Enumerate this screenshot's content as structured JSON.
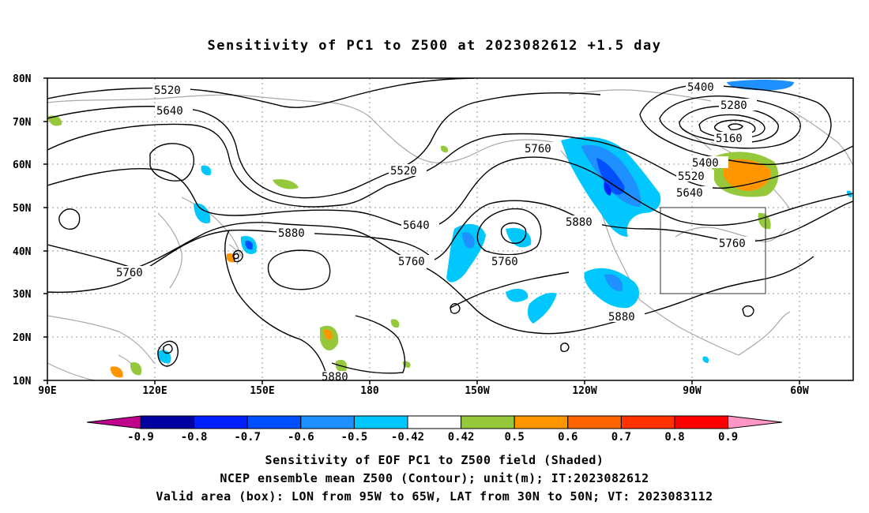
{
  "title": "Sensitivity of PC1 to Z500 at 2023082612 +1.5 day",
  "lat_labels": [
    "80N",
    "70N",
    "60N",
    "50N",
    "40N",
    "30N",
    "20N",
    "10N"
  ],
  "lon_labels": [
    "90E",
    "120E",
    "150E",
    "180",
    "150W",
    "120W",
    "90W",
    "60W"
  ],
  "contour_labels": {
    "c5520a": "5520",
    "c5640a": "5640",
    "c5520b": "5520",
    "c5760a": "5760",
    "c5640b": "5640",
    "c5760b": "5760",
    "c5760c": "5760",
    "c5880a": "5880",
    "c5880b": "5880",
    "c5880c": "5880",
    "c5880d": "5880",
    "c5760d": "5760",
    "c5400a": "5400",
    "c5280": "5280",
    "c5160": "5160",
    "c5400b": "5400",
    "c5520c": "5520",
    "c5640c": "5640",
    "c5760e": "5760"
  },
  "colorbar": {
    "ticks": [
      "-0.9",
      "-0.8",
      "-0.7",
      "-0.6",
      "-0.5",
      "-0.42",
      "0.42",
      "0.5",
      "0.6",
      "0.7",
      "0.8",
      "0.9"
    ],
    "colors": {
      "lt_neg_0.9": "#c0008c",
      "neg_0.9_0.8": "#0000a0",
      "neg_0.8_0.7": "#0020ff",
      "neg_0.7_0.6": "#0050ff",
      "neg_0.6_0.5": "#1e90ff",
      "neg_0.5_0.42": "#00c8ff",
      "neutral": "#ffffff",
      "pos_0.42_0.5": "#96c83c",
      "pos_0.5_0.6": "#ff9600",
      "pos_0.6_0.7": "#ff6400",
      "pos_0.7_0.8": "#ff3200",
      "pos_0.8_0.9": "#ff0000",
      "gt_0.9": "#ff96c8"
    }
  },
  "captions": {
    "line1": "Sensitivity of EOF PC1 to Z500 field (Shaded)",
    "line2": "NCEP ensemble mean Z500 (Contour); unit(m); IT:2023082612",
    "line3": "Valid area (box): LON from 95W to 65W, LAT from 30N to 50N; VT: 2023083112"
  }
}
